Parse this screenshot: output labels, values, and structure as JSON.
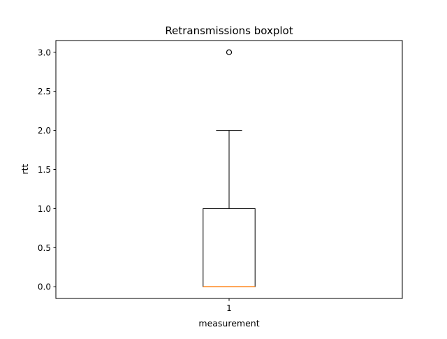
{
  "chart_data": {
    "type": "boxplot",
    "title": "Retransmissions boxplot",
    "xlabel": "measurement",
    "ylabel": "rtt",
    "categories": [
      "1"
    ],
    "boxes": [
      {
        "category": "1",
        "whisker_low": 0.0,
        "q1": 0.0,
        "median": 0.0,
        "q3": 1.0,
        "whisker_high": 2.0,
        "outliers": [
          3.0
        ]
      }
    ],
    "ylim": [
      -0.15,
      3.15
    ],
    "y_ticks": [
      0.0,
      0.5,
      1.0,
      1.5,
      2.0,
      2.5,
      3.0
    ],
    "y_tick_labels": [
      "0.0",
      "0.5",
      "1.0",
      "1.5",
      "2.0",
      "2.5",
      "3.0"
    ],
    "xlim": [
      0.5,
      1.5
    ],
    "grid": false,
    "colors": {
      "box": "#000000",
      "median": "#ff7f0e",
      "whisker": "#000000",
      "outlier": "#000000",
      "axes": "#000000"
    }
  }
}
